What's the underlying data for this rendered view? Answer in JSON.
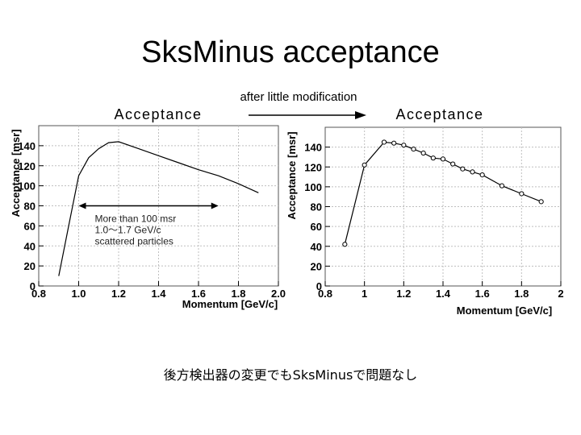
{
  "slide": {
    "title": "SksMinus acceptance",
    "subtitle": "after little modification",
    "caption": "後方検出器の変更でもSksMinusで問題なし"
  },
  "colors": {
    "grid": "#bfbfbf",
    "line": "#000000",
    "background": "#ffffff"
  },
  "chart_data": [
    {
      "type": "line",
      "title": "Acceptance",
      "xlabel": "Momentum [GeV/c]",
      "ylabel": "Acceptance [msr]",
      "xlim": [
        0.8,
        2.0
      ],
      "ylim": [
        0,
        160
      ],
      "xticks": [
        "0.8",
        "1.0",
        "1.2",
        "1.4",
        "1.6",
        "1.8",
        "2.0"
      ],
      "xtick_values": [
        0.8,
        1.0,
        1.2,
        1.4,
        1.6,
        1.8,
        2.0
      ],
      "yticks": [
        "0",
        "20",
        "40",
        "60",
        "80",
        "100",
        "120",
        "140"
      ],
      "ytick_values": [
        0,
        20,
        40,
        60,
        80,
        100,
        120,
        140
      ],
      "grid": true,
      "markers": false,
      "series": [
        {
          "x": [
            0.9,
            0.95,
            1.0,
            1.05,
            1.1,
            1.15,
            1.2,
            1.3,
            1.4,
            1.5,
            1.6,
            1.7,
            1.8,
            1.9
          ],
          "y": [
            10,
            60,
            110,
            128,
            137,
            143,
            144,
            137,
            130,
            123,
            116,
            110,
            102,
            93
          ]
        }
      ],
      "annotation": {
        "lines": [
          "More than 100 msr",
          "1.0～1.7 GeV/c",
          "scattered particles"
        ],
        "arrow_from": 1.0,
        "arrow_to": 1.7,
        "arrow_y": 80
      }
    },
    {
      "type": "line",
      "title": "Acceptance",
      "xlabel": "Momentum [GeV/c]",
      "ylabel": "Acceptance [msr]",
      "xlim": [
        0.8,
        2.0
      ],
      "ylim": [
        0,
        160
      ],
      "xticks": [
        "0.8",
        "1",
        "1.2",
        "1.4",
        "1.6",
        "1.8",
        "2"
      ],
      "xtick_values": [
        0.8,
        1.0,
        1.2,
        1.4,
        1.6,
        1.8,
        2.0
      ],
      "yticks": [
        "0",
        "20",
        "40",
        "60",
        "80",
        "100",
        "120",
        "140"
      ],
      "ytick_values": [
        0,
        20,
        40,
        60,
        80,
        100,
        120,
        140
      ],
      "grid": true,
      "markers": true,
      "series": [
        {
          "x": [
            0.9,
            1.0,
            1.1,
            1.15,
            1.2,
            1.25,
            1.3,
            1.35,
            1.4,
            1.45,
            1.5,
            1.55,
            1.6,
            1.7,
            1.8,
            1.9
          ],
          "y": [
            42,
            122,
            145,
            144,
            142,
            138,
            134,
            129,
            128,
            123,
            118,
            115,
            112,
            101,
            93,
            85
          ]
        }
      ]
    }
  ]
}
